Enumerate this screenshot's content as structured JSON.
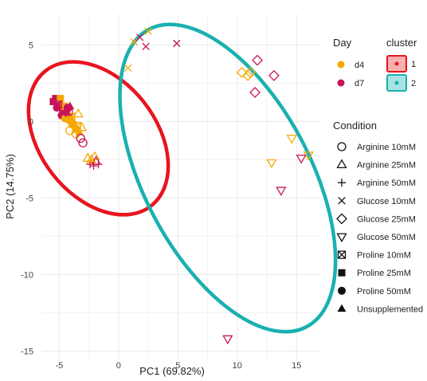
{
  "chart_data": {
    "type": "scatter",
    "xlabel": "PC1 (69.82%)",
    "ylabel": "PC2 (14.75%)",
    "xlim": [
      -6.5,
      17
    ],
    "ylim": [
      -15.5,
      7
    ],
    "x_ticks": [
      -5,
      0,
      5,
      10,
      15
    ],
    "y_ticks": [
      5,
      0,
      -5,
      -10,
      -15
    ],
    "x_tick_labels": [
      "-5",
      "0",
      "5",
      "10",
      "15"
    ],
    "y_tick_labels": [
      "5",
      "0",
      "-5",
      "-10",
      "-15"
    ],
    "grid": true,
    "legend_position": "right",
    "colors": {
      "d4": "#f5a800",
      "d7": "#c8145a",
      "cluster1": "#e8141e",
      "cluster2": "#1ab0b0",
      "grid": "#ebebeb"
    },
    "day_legend": {
      "title": "Day",
      "items": [
        {
          "label": "d4",
          "color": "#f5a800"
        },
        {
          "label": "d7",
          "color": "#c8145a"
        }
      ]
    },
    "cluster_legend": {
      "title": "cluster",
      "items": [
        {
          "label": "1",
          "stroke": "#e8141e",
          "fill": "#f6b0b0"
        },
        {
          "label": "2",
          "stroke": "#1ab0b0",
          "fill": "#a8e4e4"
        }
      ]
    },
    "condition_legend": {
      "title": "Condition",
      "items": [
        {
          "label": "Arginine 10mM",
          "shape": "circle-open"
        },
        {
          "label": "Arginine 25mM",
          "shape": "triangle-open"
        },
        {
          "label": "Arginine 50mM",
          "shape": "plus"
        },
        {
          "label": "Glucose 10mM",
          "shape": "cross"
        },
        {
          "label": "Glucose 25mM",
          "shape": "diamond-open"
        },
        {
          "label": "Glucose 50mM",
          "shape": "triangle-down-open"
        },
        {
          "label": "Proline 10mM",
          "shape": "square-cross"
        },
        {
          "label": "Proline 25mM",
          "shape": "square-filled"
        },
        {
          "label": "Proline 50mM",
          "shape": "circle-filled"
        },
        {
          "label": "Unsupplemented",
          "shape": "triangle-filled"
        }
      ]
    },
    "cluster_ellipses": [
      {
        "cluster": "1",
        "center": [
          -1.7,
          -1.1
        ],
        "semi_axes": [
          4.9,
          5.6
        ],
        "rotation_deg": -38
      },
      {
        "cluster": "2",
        "center": [
          9.2,
          -3.7
        ],
        "semi_axes": [
          7.0,
          11.0
        ],
        "rotation_deg": -28
      }
    ],
    "points": [
      {
        "x": 1.3,
        "y": 5.2,
        "day": "d4",
        "shape": "cross"
      },
      {
        "x": 2.5,
        "y": 5.9,
        "day": "d4",
        "shape": "cross"
      },
      {
        "x": 1.8,
        "y": 5.5,
        "day": "d7",
        "shape": "cross"
      },
      {
        "x": 2.3,
        "y": 4.9,
        "day": "d7",
        "shape": "cross"
      },
      {
        "x": 0.8,
        "y": 3.5,
        "day": "d4",
        "shape": "cross"
      },
      {
        "x": 4.9,
        "y": 5.1,
        "day": "d7",
        "shape": "cross"
      },
      {
        "x": 10.4,
        "y": 3.2,
        "day": "d4",
        "shape": "diamond-open"
      },
      {
        "x": 10.9,
        "y": 3.0,
        "day": "d4",
        "shape": "diamond-open"
      },
      {
        "x": 11.1,
        "y": 3.2,
        "day": "d4",
        "shape": "diamond-open"
      },
      {
        "x": 11.7,
        "y": 4.0,
        "day": "d7",
        "shape": "diamond-open"
      },
      {
        "x": 13.1,
        "y": 3.0,
        "day": "d7",
        "shape": "diamond-open"
      },
      {
        "x": 11.5,
        "y": 1.9,
        "day": "d7",
        "shape": "diamond-open"
      },
      {
        "x": 14.6,
        "y": -1.1,
        "day": "d4",
        "shape": "triangle-down-open"
      },
      {
        "x": 16.0,
        "y": -2.2,
        "day": "d4",
        "shape": "triangle-down-open"
      },
      {
        "x": 15.4,
        "y": -2.4,
        "day": "d7",
        "shape": "triangle-down-open"
      },
      {
        "x": 12.9,
        "y": -2.7,
        "day": "d4",
        "shape": "triangle-down-open"
      },
      {
        "x": 13.7,
        "y": -4.5,
        "day": "d7",
        "shape": "triangle-down-open"
      },
      {
        "x": 9.2,
        "y": -14.2,
        "day": "d7",
        "shape": "triangle-down-open"
      },
      {
        "x": -5.3,
        "y": 1.5,
        "day": "d7",
        "shape": "square-filled"
      },
      {
        "x": -5.0,
        "y": 1.2,
        "day": "d7",
        "shape": "square-filled"
      },
      {
        "x": -4.7,
        "y": 0.8,
        "day": "d7",
        "shape": "square-filled"
      },
      {
        "x": -5.5,
        "y": 1.3,
        "day": "d7",
        "shape": "square-filled"
      },
      {
        "x": -4.4,
        "y": 0.5,
        "day": "d7",
        "shape": "square-filled"
      },
      {
        "x": -4.9,
        "y": 1.5,
        "day": "d4",
        "shape": "square-filled"
      },
      {
        "x": -4.1,
        "y": 0.1,
        "day": "d4",
        "shape": "square-filled"
      },
      {
        "x": -4.6,
        "y": 1.0,
        "day": "d4",
        "shape": "square-filled"
      },
      {
        "x": -5.2,
        "y": 0.9,
        "day": "d7",
        "shape": "circle-filled"
      },
      {
        "x": -4.8,
        "y": 0.4,
        "day": "d7",
        "shape": "circle-filled"
      },
      {
        "x": -4.3,
        "y": 0.9,
        "day": "d7",
        "shape": "circle-filled"
      },
      {
        "x": -3.9,
        "y": -0.2,
        "day": "d4",
        "shape": "circle-filled"
      },
      {
        "x": -3.6,
        "y": -0.5,
        "day": "d4",
        "shape": "circle-filled"
      },
      {
        "x": -4.5,
        "y": 0.2,
        "day": "d4",
        "shape": "circle-filled"
      },
      {
        "x": -5.1,
        "y": 1.1,
        "day": "d7",
        "shape": "square-cross"
      },
      {
        "x": -4.2,
        "y": 0.6,
        "day": "d7",
        "shape": "square-cross"
      },
      {
        "x": -4.0,
        "y": 0.3,
        "day": "d4",
        "shape": "square-cross"
      },
      {
        "x": -3.5,
        "y": -0.3,
        "day": "d4",
        "shape": "square-cross"
      },
      {
        "x": -3.3,
        "y": -0.7,
        "day": "d4",
        "shape": "triangle-filled"
      },
      {
        "x": -3.8,
        "y": 0.0,
        "day": "d4",
        "shape": "triangle-filled"
      },
      {
        "x": -4.4,
        "y": 0.6,
        "day": "d7",
        "shape": "triangle-filled"
      },
      {
        "x": -4.1,
        "y": 1.0,
        "day": "d7",
        "shape": "triangle-filled"
      },
      {
        "x": -3.4,
        "y": 0.5,
        "day": "d4",
        "shape": "triangle-open"
      },
      {
        "x": -3.1,
        "y": -0.4,
        "day": "d4",
        "shape": "triangle-open"
      },
      {
        "x": -4.1,
        "y": -0.6,
        "day": "d4",
        "shape": "circle-open"
      },
      {
        "x": -3.6,
        "y": -0.8,
        "day": "d4",
        "shape": "circle-open"
      },
      {
        "x": -3.2,
        "y": -1.1,
        "day": "d7",
        "shape": "circle-open"
      },
      {
        "x": -3.0,
        "y": -1.4,
        "day": "d7",
        "shape": "circle-open"
      },
      {
        "x": -2.6,
        "y": -2.4,
        "day": "d4",
        "shape": "triangle-open"
      },
      {
        "x": -2.3,
        "y": -2.5,
        "day": "d4",
        "shape": "triangle-open"
      },
      {
        "x": -2.0,
        "y": -2.3,
        "day": "d4",
        "shape": "triangle-open"
      },
      {
        "x": -1.9,
        "y": -2.6,
        "day": "d7",
        "shape": "triangle-open"
      },
      {
        "x": -2.1,
        "y": -2.9,
        "day": "d7",
        "shape": "plus"
      },
      {
        "x": -2.4,
        "y": -2.8,
        "day": "d7",
        "shape": "plus"
      },
      {
        "x": -1.7,
        "y": -2.8,
        "day": "d7",
        "shape": "plus"
      },
      {
        "x": -2.3,
        "y": -2.6,
        "day": "d4",
        "shape": "plus"
      }
    ]
  }
}
